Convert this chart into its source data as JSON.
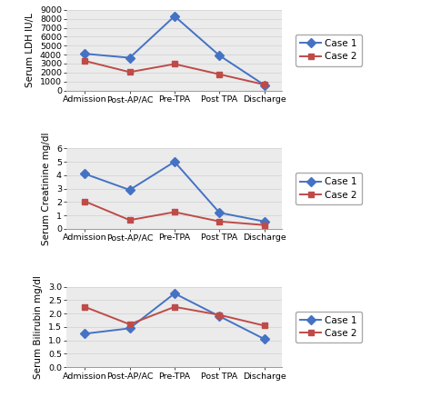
{
  "x_labels": [
    "Admission",
    "Post-AP/AC",
    "Pre-TPA",
    "Post TPA",
    "Discharge"
  ],
  "ldh": {
    "case1": [
      4100,
      3650,
      8300,
      3900,
      600
    ],
    "case2": [
      3300,
      2050,
      2950,
      1800,
      650
    ],
    "ylabel": "Serum LDH IU/L",
    "ylim": [
      0,
      9000
    ],
    "yticks": [
      0,
      1000,
      2000,
      3000,
      4000,
      5000,
      6000,
      7000,
      8000,
      9000
    ]
  },
  "creatinine": {
    "case1": [
      4.1,
      2.9,
      5.0,
      1.2,
      0.55
    ],
    "case2": [
      2.05,
      0.65,
      1.25,
      0.55,
      0.28
    ],
    "ylabel": "Serum Creatinine mg/dl",
    "ylim": [
      0,
      6
    ],
    "yticks": [
      0,
      1,
      2,
      3,
      4,
      5,
      6
    ]
  },
  "bilirubin": {
    "case1": [
      1.25,
      1.45,
      2.75,
      1.9,
      1.05
    ],
    "case2": [
      2.25,
      1.6,
      2.25,
      1.95,
      1.55
    ],
    "ylabel": "Serum Bilirubin mg/dl",
    "ylim": [
      0,
      3
    ],
    "yticks": [
      0,
      0.5,
      1.0,
      1.5,
      2.0,
      2.5,
      3.0
    ]
  },
  "case1_color": "#4472C4",
  "case2_color": "#BE4B48",
  "case1_label": "Case 1",
  "case2_label": "Case 2",
  "linewidth": 1.4,
  "markersize": 5,
  "legend_fontsize": 7.5,
  "tick_fontsize": 6.8,
  "ylabel_fontsize": 7.5,
  "grid_color": "#D8D8D8",
  "bg_color": "#EBEBEB"
}
